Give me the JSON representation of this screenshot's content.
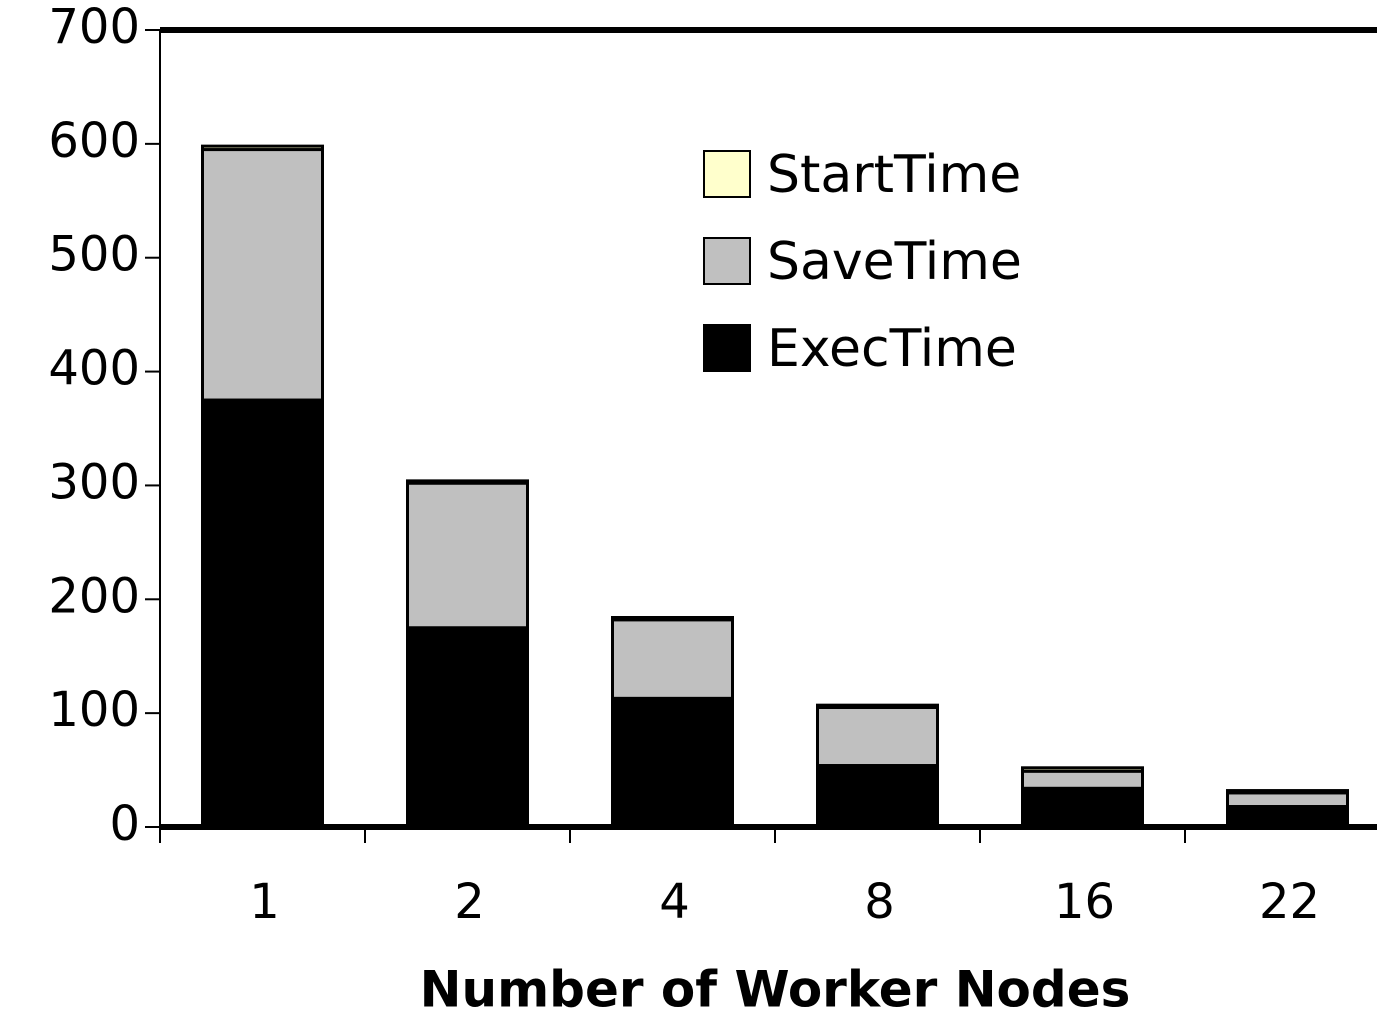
{
  "chart_data": {
    "type": "stacked_bar",
    "x_label": "Number of Worker Nodes",
    "categories": [
      "1",
      "2",
      "4",
      "8",
      "16",
      "22"
    ],
    "series": [
      {
        "name": "ExecTime",
        "color": "#000000",
        "values": [
          375,
          175,
          113,
          54,
          34,
          18
        ]
      },
      {
        "name": "SaveTime",
        "color": "#c0c0c0",
        "values": [
          220,
          127,
          69,
          51,
          15,
          12
        ]
      },
      {
        "name": "StartTime",
        "color": "#ffffcc",
        "values": [
          3,
          2,
          2,
          2,
          3,
          2
        ]
      }
    ],
    "ylim": [
      0,
      700
    ],
    "yticks": [
      0,
      100,
      200,
      300,
      400,
      500,
      600,
      700
    ],
    "legend": "upper right"
  }
}
